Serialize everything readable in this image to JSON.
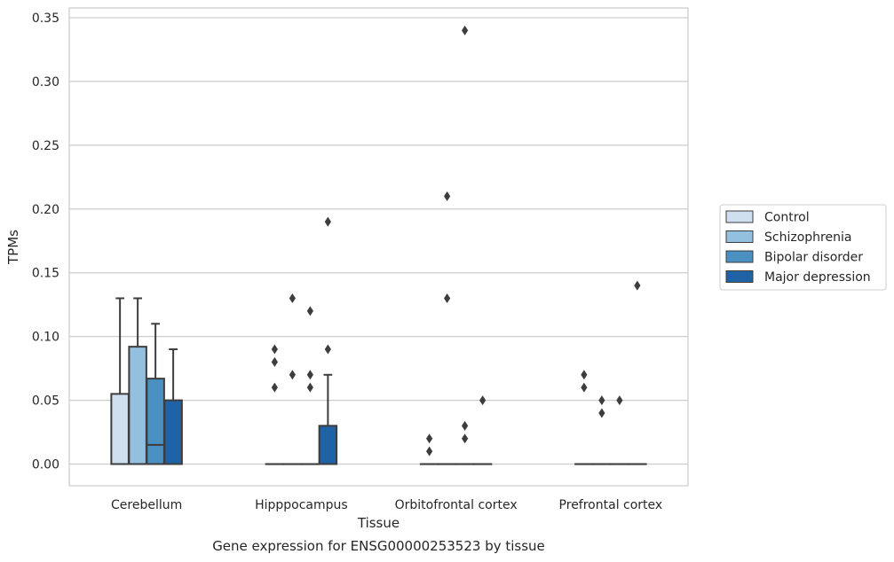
{
  "chart_data": {
    "type": "box",
    "xlabel": "Tissue",
    "ylabel": "TPMs",
    "caption": "Gene expression for ENSG00000253523 by tissue",
    "ylim": [
      -0.0165,
      0.357
    ],
    "yticks": [
      "0.00",
      "0.05",
      "0.10",
      "0.15",
      "0.20",
      "0.25",
      "0.30",
      "0.35"
    ],
    "grid": "horizontal",
    "legend_position": "right",
    "categories": [
      "Cerebellum",
      "Hipppocampus",
      "Orbitofrontal cortex",
      "Prefrontal cortex"
    ],
    "series": [
      {
        "name": "Control",
        "color": "#cfdff0"
      },
      {
        "name": "Schizophrenia",
        "color": "#93c0de"
      },
      {
        "name": "Bipolar disorder",
        "color": "#4a90c2"
      },
      {
        "name": "Major depression",
        "color": "#1f62a6"
      }
    ],
    "boxes": [
      {
        "category": 0,
        "series": 0,
        "q1": 0.0,
        "median": 0.0,
        "q3": 0.055,
        "whisker_low": 0.0,
        "whisker_high": 0.13,
        "outliers": []
      },
      {
        "category": 0,
        "series": 1,
        "q1": 0.0,
        "median": 0.0,
        "q3": 0.092,
        "whisker_low": 0.0,
        "whisker_high": 0.13,
        "outliers": []
      },
      {
        "category": 0,
        "series": 2,
        "q1": 0.0,
        "median": 0.015,
        "q3": 0.067,
        "whisker_low": 0.0,
        "whisker_high": 0.11,
        "outliers": []
      },
      {
        "category": 0,
        "series": 3,
        "q1": 0.0,
        "median": 0.0,
        "q3": 0.05,
        "whisker_low": 0.0,
        "whisker_high": 0.09,
        "outliers": []
      },
      {
        "category": 1,
        "series": 0,
        "q1": 0.0,
        "median": 0.0,
        "q3": 0.0,
        "whisker_low": 0.0,
        "whisker_high": 0.0,
        "outliers": [
          0.06,
          0.08,
          0.09
        ]
      },
      {
        "category": 1,
        "series": 1,
        "q1": 0.0,
        "median": 0.0,
        "q3": 0.0,
        "whisker_low": 0.0,
        "whisker_high": 0.0,
        "outliers": [
          0.07,
          0.13
        ]
      },
      {
        "category": 1,
        "series": 2,
        "q1": 0.0,
        "median": 0.0,
        "q3": 0.0,
        "whisker_low": 0.0,
        "whisker_high": 0.0,
        "outliers": [
          0.06,
          0.07,
          0.12
        ]
      },
      {
        "category": 1,
        "series": 3,
        "q1": 0.0,
        "median": 0.0,
        "q3": 0.03,
        "whisker_low": 0.0,
        "whisker_high": 0.07,
        "outliers": [
          0.09,
          0.19
        ]
      },
      {
        "category": 2,
        "series": 0,
        "q1": 0.0,
        "median": 0.0,
        "q3": 0.0,
        "whisker_low": 0.0,
        "whisker_high": 0.0,
        "outliers": [
          0.01,
          0.02
        ]
      },
      {
        "category": 2,
        "series": 1,
        "q1": 0.0,
        "median": 0.0,
        "q3": 0.0,
        "whisker_low": 0.0,
        "whisker_high": 0.0,
        "outliers": [
          0.13,
          0.21
        ]
      },
      {
        "category": 2,
        "series": 2,
        "q1": 0.0,
        "median": 0.0,
        "q3": 0.0,
        "whisker_low": 0.0,
        "whisker_high": 0.0,
        "outliers": [
          0.02,
          0.03,
          0.34
        ]
      },
      {
        "category": 2,
        "series": 3,
        "q1": 0.0,
        "median": 0.0,
        "q3": 0.0,
        "whisker_low": 0.0,
        "whisker_high": 0.0,
        "outliers": [
          0.05
        ]
      },
      {
        "category": 3,
        "series": 0,
        "q1": 0.0,
        "median": 0.0,
        "q3": 0.0,
        "whisker_low": 0.0,
        "whisker_high": 0.0,
        "outliers": [
          0.06,
          0.07
        ]
      },
      {
        "category": 3,
        "series": 1,
        "q1": 0.0,
        "median": 0.0,
        "q3": 0.0,
        "whisker_low": 0.0,
        "whisker_high": 0.0,
        "outliers": [
          0.04,
          0.05
        ]
      },
      {
        "category": 3,
        "series": 2,
        "q1": 0.0,
        "median": 0.0,
        "q3": 0.0,
        "whisker_low": 0.0,
        "whisker_high": 0.0,
        "outliers": [
          0.05
        ]
      },
      {
        "category": 3,
        "series": 3,
        "q1": 0.0,
        "median": 0.0,
        "q3": 0.0,
        "whisker_low": 0.0,
        "whisker_high": 0.0,
        "outliers": [
          0.14
        ]
      }
    ]
  }
}
